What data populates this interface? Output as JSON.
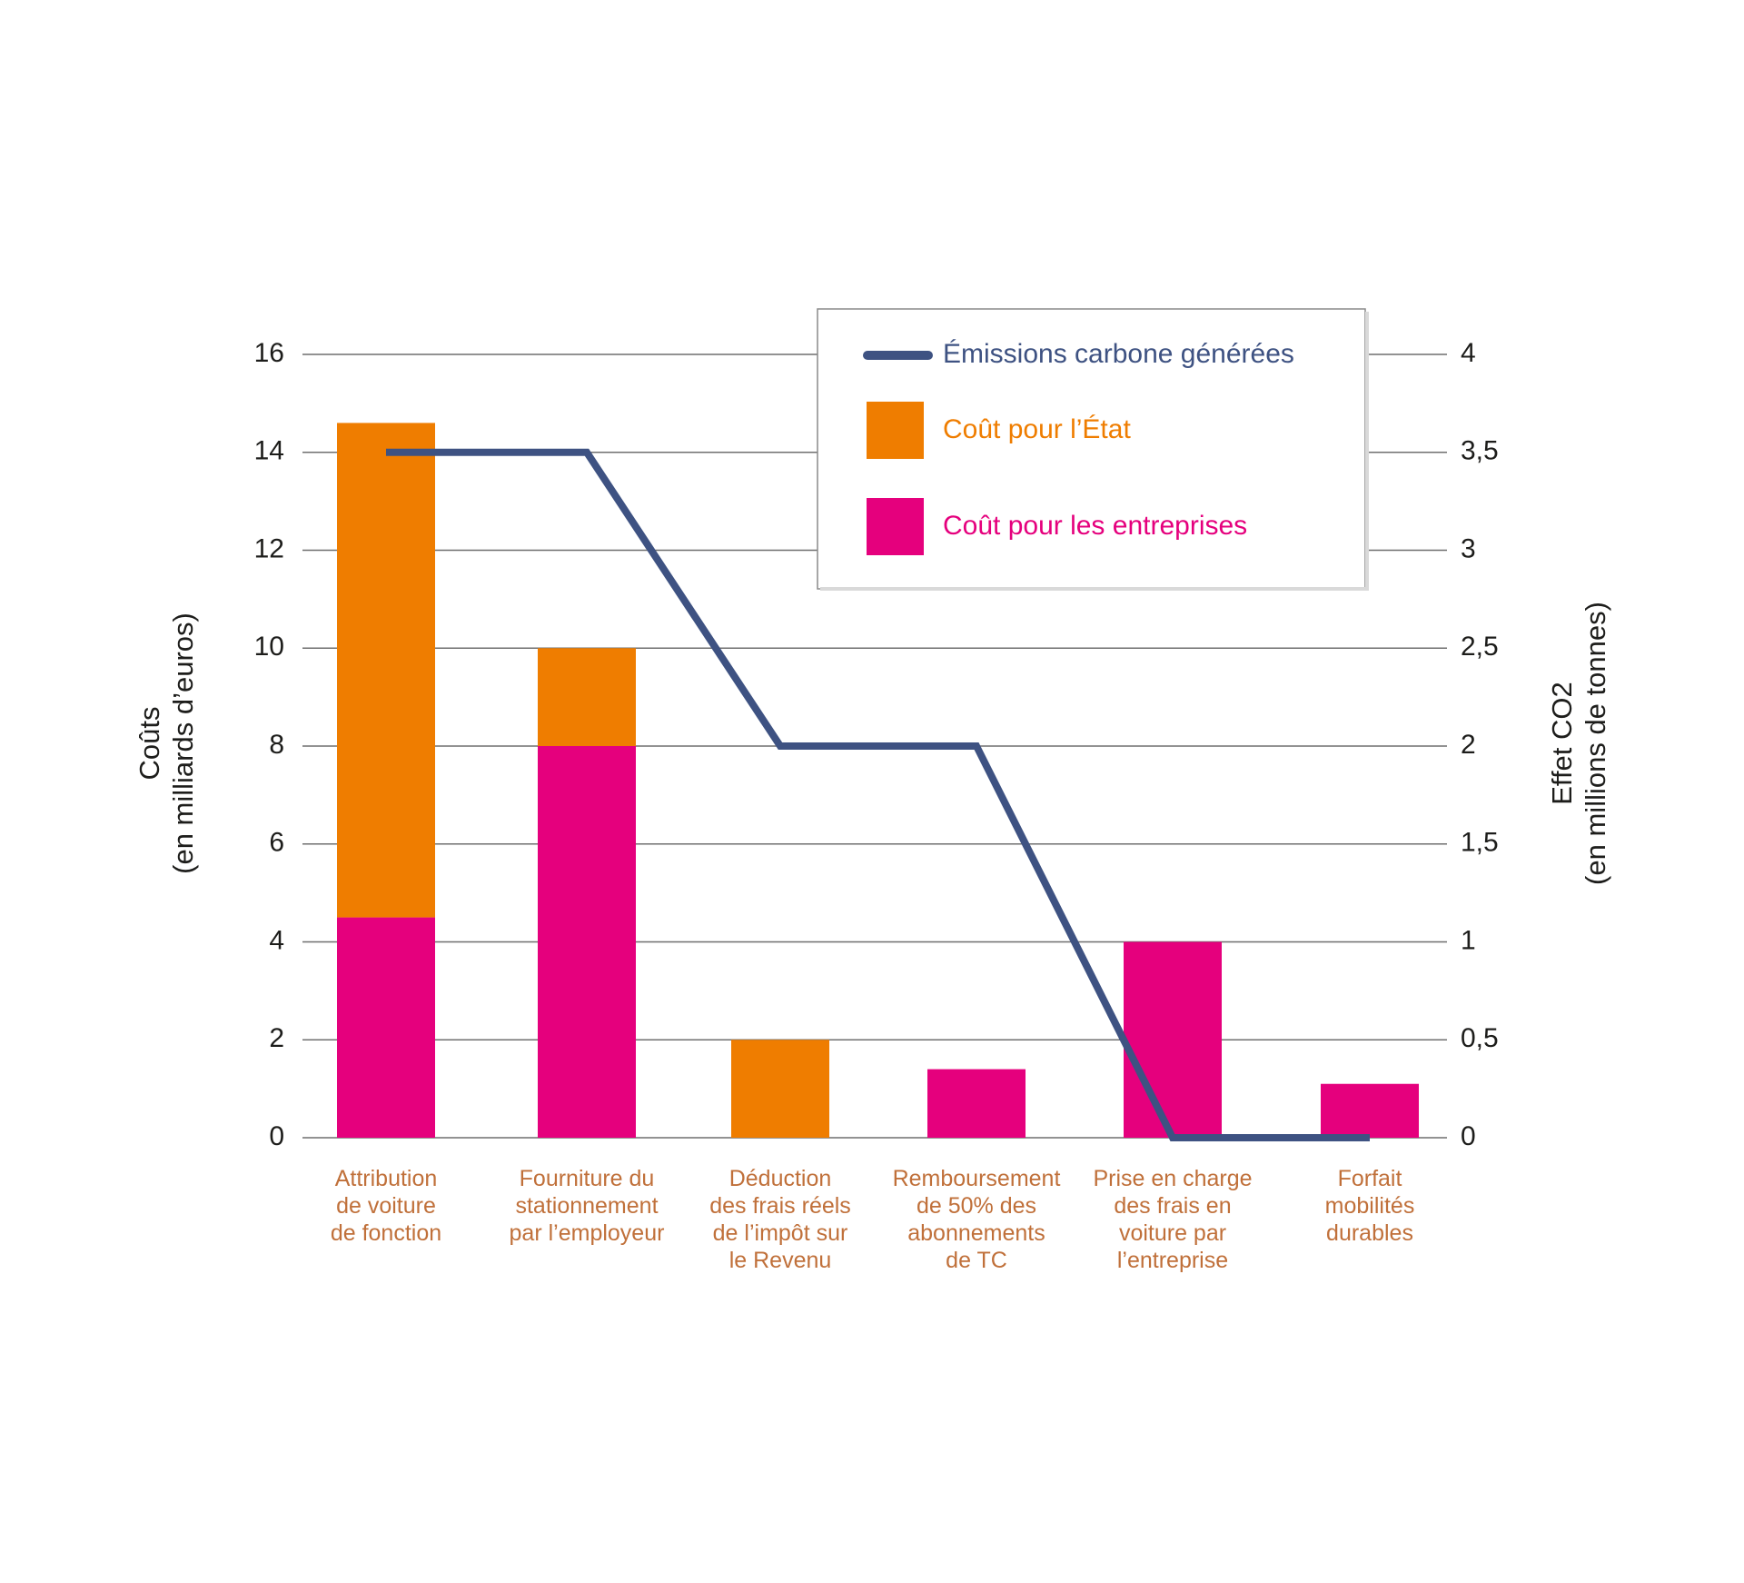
{
  "chart_data": {
    "type": "bar",
    "stacked": true,
    "grid": true,
    "legend_position": "top-right",
    "categories": [
      [
        "Attribution",
        "de voiture",
        "de fonction"
      ],
      [
        "Fourniture du",
        "stationnement",
        "par l’employeur"
      ],
      [
        "Déduction",
        "des frais réels",
        "de l’impôt sur",
        "le Revenu"
      ],
      [
        "Remboursement",
        "de 50% des",
        "abonnements",
        "de TC"
      ],
      [
        "Prise en charge",
        "des frais en",
        "voiture par",
        "l’entreprise"
      ],
      [
        "Forfait",
        "mobilités",
        "durables"
      ]
    ],
    "series": [
      {
        "name": "Coût pour les entreprises",
        "axis": "left",
        "kind": "bar",
        "color": "#e5007d",
        "values": [
          4.5,
          8,
          0,
          1.4,
          4,
          1.1
        ]
      },
      {
        "name": "Coût pour l’État",
        "axis": "left",
        "kind": "bar",
        "color": "#ef7d00",
        "values": [
          10.1,
          2,
          2,
          0,
          0,
          0
        ]
      },
      {
        "name": "Émissions carbone générées",
        "axis": "right",
        "kind": "line",
        "color": "#3e5282",
        "values": [
          3.5,
          3.5,
          2,
          2,
          0,
          0
        ]
      }
    ],
    "y_left": {
      "label_lines": [
        "Coûts",
        "(en milliards d’euros)"
      ],
      "range": [
        0,
        16
      ],
      "ticks": [
        "0",
        "2",
        "4",
        "6",
        "8",
        "10",
        "12",
        "14",
        "16"
      ]
    },
    "y_right": {
      "label_lines": [
        "Effet CO2",
        "(en millions de tonnes)"
      ],
      "range": [
        0,
        4
      ],
      "ticks": [
        "0",
        "0,5",
        "1",
        "1,5",
        "2",
        "2,5",
        "3",
        "3,5",
        "4"
      ]
    },
    "legend": [
      {
        "label": "Émissions carbone générées",
        "type": "line",
        "color": "#3e5282"
      },
      {
        "label": "Coût pour l’État",
        "type": "box",
        "color": "#ef7d00"
      },
      {
        "label": "Coût pour les entreprises",
        "type": "box",
        "color": "#e5007d"
      }
    ]
  }
}
